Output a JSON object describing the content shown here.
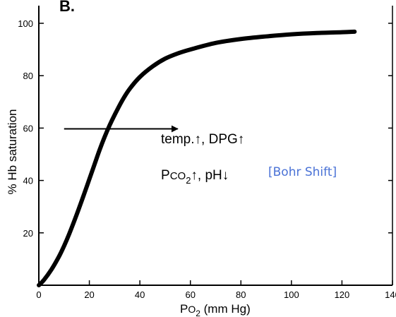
{
  "chart_data": {
    "type": "line",
    "panel_label": "B.",
    "xlabel_main": "P",
    "xlabel_sub": "O",
    "xlabel_subsub": "2",
    "xlabel_rest": " (mm Hg)",
    "ylabel": "% Hb saturation",
    "xlim": [
      0,
      140
    ],
    "ylim": [
      0,
      100
    ],
    "x_ticks": [
      0,
      20,
      40,
      60,
      80,
      100,
      120,
      140
    ],
    "x_tick_labels": [
      "0",
      "20",
      "40",
      "60",
      "80",
      "100",
      "120",
      "140"
    ],
    "y_ticks": [
      20,
      40,
      60,
      80,
      100
    ],
    "y_tick_labels": [
      "20",
      "40",
      "60",
      "80",
      "100"
    ],
    "series": [
      {
        "x": [
          0,
          2,
          5,
          8,
          10,
          12,
          15,
          18,
          20,
          22,
          24,
          26,
          28,
          30,
          33,
          36,
          40,
          45,
          50,
          55,
          60,
          70,
          80,
          90,
          100,
          110,
          120,
          125
        ],
        "y": [
          0,
          2,
          6,
          11,
          15,
          19.5,
          27,
          35,
          40.5,
          46,
          51.5,
          56.5,
          61,
          65,
          70.5,
          75,
          79.5,
          83.5,
          86.5,
          88.5,
          90,
          92.5,
          94,
          95,
          95.8,
          96.3,
          96.6,
          96.8
        ]
      }
    ],
    "annotations": {
      "line1_text": "temp.",
      "line1_arrow": "↑",
      "line1_sep": ",",
      "line1_text2": " DPG",
      "line1_arrow2": "↑",
      "line2_p": "P",
      "line2_co": "CO",
      "line2_sub": "2",
      "line2_arrow": "↑",
      "line2_sep": ",",
      "line2_ph": " pH",
      "line2_arrow2": "↓",
      "bohr": "[Bohr Shift]"
    },
    "shift_arrow": {
      "from_x": 10,
      "to_x": 55,
      "y": 50
    }
  }
}
